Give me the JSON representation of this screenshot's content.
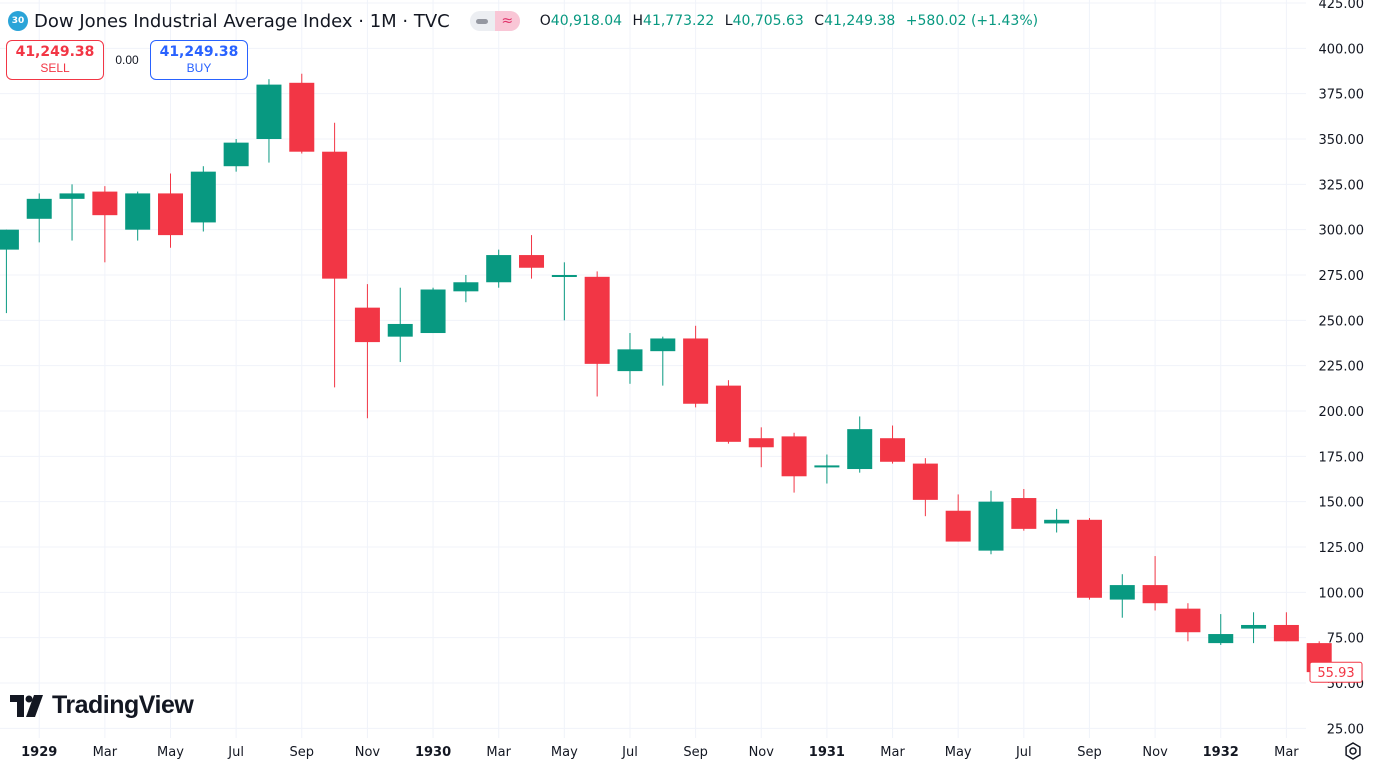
{
  "header": {
    "badge": "30",
    "title": "Dow Jones Industrial Average Index · 1M · TVC",
    "ohlc": {
      "o_label": "O",
      "o": "40,918.04",
      "h_label": "H",
      "h": "41,773.22",
      "l_label": "L",
      "l": "40,705.63",
      "c_label": "C",
      "c": "41,249.38",
      "change": "+580.02 (+1.43%)"
    },
    "toggle_icons": [
      "eye-icon",
      "wave-icon"
    ]
  },
  "trade": {
    "sell_price": "41,249.38",
    "sell_label": "SELL",
    "spread": "0.00",
    "buy_price": "41,249.38",
    "buy_label": "BUY"
  },
  "logo": {
    "word": "TradingView"
  },
  "colors": {
    "up": "#089981",
    "down": "#f23645",
    "grid": "#f0f3fa",
    "text": "#131722"
  },
  "chart_data": {
    "type": "candlestick",
    "y_ticks": [
      "425.00",
      "400.00",
      "375.00",
      "350.00",
      "325.00",
      "300.00",
      "275.00",
      "250.00",
      "225.00",
      "200.00",
      "175.00",
      "150.00",
      "125.00",
      "100.00",
      "75.00",
      "50.00",
      "25.00"
    ],
    "y_tick_values": [
      425,
      400,
      375,
      350,
      325,
      300,
      275,
      250,
      225,
      200,
      175,
      150,
      125,
      100,
      75,
      50,
      25
    ],
    "x_ticks": [
      {
        "label": "1929",
        "index": 1,
        "bold": true
      },
      {
        "label": "Mar",
        "index": 3
      },
      {
        "label": "May",
        "index": 5
      },
      {
        "label": "Jul",
        "index": 7
      },
      {
        "label": "Sep",
        "index": 9
      },
      {
        "label": "Nov",
        "index": 11
      },
      {
        "label": "1930",
        "index": 13,
        "bold": true
      },
      {
        "label": "Mar",
        "index": 15
      },
      {
        "label": "May",
        "index": 17
      },
      {
        "label": "Jul",
        "index": 19
      },
      {
        "label": "Sep",
        "index": 21
      },
      {
        "label": "Nov",
        "index": 23
      },
      {
        "label": "1931",
        "index": 25,
        "bold": true
      },
      {
        "label": "Mar",
        "index": 27
      },
      {
        "label": "May",
        "index": 29
      },
      {
        "label": "Jul",
        "index": 31
      },
      {
        "label": "Sep",
        "index": 33
      },
      {
        "label": "Nov",
        "index": 35
      },
      {
        "label": "1932",
        "index": 37,
        "bold": true
      },
      {
        "label": "Mar",
        "index": 39
      }
    ],
    "candles": [
      {
        "o": 289,
        "h": 300,
        "l": 254,
        "c": 300
      },
      {
        "o": 306,
        "h": 320,
        "l": 293,
        "c": 317
      },
      {
        "o": 317,
        "h": 325,
        "l": 294,
        "c": 320
      },
      {
        "o": 321,
        "h": 324,
        "l": 282,
        "c": 308
      },
      {
        "o": 300,
        "h": 321,
        "l": 294,
        "c": 320
      },
      {
        "o": 320,
        "h": 331,
        "l": 290,
        "c": 297
      },
      {
        "o": 304,
        "h": 335,
        "l": 299,
        "c": 332
      },
      {
        "o": 335,
        "h": 350,
        "l": 332,
        "c": 348
      },
      {
        "o": 350,
        "h": 383,
        "l": 337,
        "c": 380
      },
      {
        "o": 381,
        "h": 386,
        "l": 342,
        "c": 343
      },
      {
        "o": 343,
        "h": 359,
        "l": 213,
        "c": 273
      },
      {
        "o": 257,
        "h": 270,
        "l": 196,
        "c": 238
      },
      {
        "o": 241,
        "h": 268,
        "l": 227,
        "c": 248
      },
      {
        "o": 243,
        "h": 268,
        "l": 243,
        "c": 267
      },
      {
        "o": 266,
        "h": 275,
        "l": 260,
        "c": 271
      },
      {
        "o": 271,
        "h": 289,
        "l": 268,
        "c": 286
      },
      {
        "o": 286,
        "h": 297,
        "l": 273,
        "c": 279
      },
      {
        "o": 275,
        "h": 282,
        "l": 250,
        "c": 275
      },
      {
        "o": 274,
        "h": 277,
        "l": 208,
        "c": 226
      },
      {
        "o": 222,
        "h": 243,
        "l": 215,
        "c": 234
      },
      {
        "o": 233,
        "h": 241,
        "l": 214,
        "c": 240
      },
      {
        "o": 240,
        "h": 247,
        "l": 202,
        "c": 204
      },
      {
        "o": 214,
        "h": 217,
        "l": 182,
        "c": 183
      },
      {
        "o": 185,
        "h": 191,
        "l": 169,
        "c": 180
      },
      {
        "o": 186,
        "h": 188,
        "l": 155,
        "c": 164
      },
      {
        "o": 170,
        "h": 176,
        "l": 160,
        "c": 170
      },
      {
        "o": 168,
        "h": 197,
        "l": 166,
        "c": 190
      },
      {
        "o": 185,
        "h": 192,
        "l": 171,
        "c": 172
      },
      {
        "o": 171,
        "h": 174,
        "l": 142,
        "c": 151
      },
      {
        "o": 145,
        "h": 154,
        "l": 128,
        "c": 128
      },
      {
        "o": 123,
        "h": 156,
        "l": 121,
        "c": 150
      },
      {
        "o": 152,
        "h": 157,
        "l": 134,
        "c": 135
      },
      {
        "o": 138,
        "h": 146,
        "l": 133,
        "c": 140
      },
      {
        "o": 140,
        "h": 141,
        "l": 96,
        "c": 97
      },
      {
        "o": 96,
        "h": 110,
        "l": 86,
        "c": 104
      },
      {
        "o": 104,
        "h": 120,
        "l": 90,
        "c": 94
      },
      {
        "o": 91,
        "h": 94,
        "l": 73,
        "c": 78
      },
      {
        "o": 72,
        "h": 88,
        "l": 71,
        "c": 77
      },
      {
        "o": 80,
        "h": 89,
        "l": 72,
        "c": 82
      },
      {
        "o": 82,
        "h": 89,
        "l": 73,
        "c": 73
      },
      {
        "o": 72,
        "h": 73,
        "l": 56,
        "c": 56
      }
    ],
    "last_price_label": "55.93",
    "last_price": 55.93,
    "ylim": [
      25,
      425
    ]
  }
}
